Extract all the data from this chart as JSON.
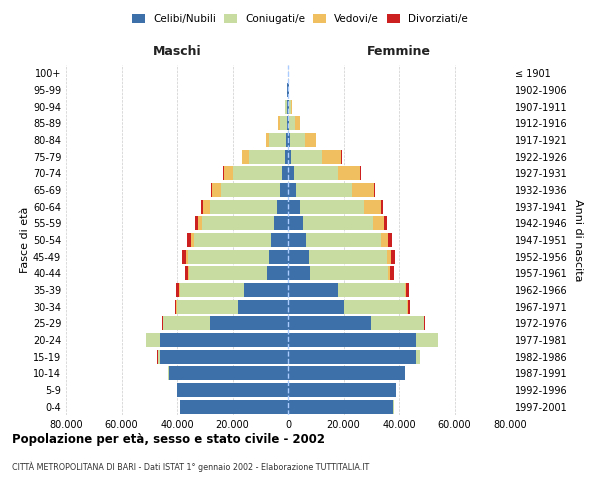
{
  "age_groups": [
    "0-4",
    "5-9",
    "10-14",
    "15-19",
    "20-24",
    "25-29",
    "30-34",
    "35-39",
    "40-44",
    "45-49",
    "50-54",
    "55-59",
    "60-64",
    "65-69",
    "70-74",
    "75-79",
    "80-84",
    "85-89",
    "90-94",
    "95-99",
    "100+"
  ],
  "birth_years": [
    "1997-2001",
    "1992-1996",
    "1987-1991",
    "1982-1986",
    "1977-1981",
    "1972-1976",
    "1967-1971",
    "1962-1966",
    "1957-1961",
    "1952-1956",
    "1947-1951",
    "1942-1946",
    "1937-1941",
    "1932-1936",
    "1927-1931",
    "1922-1926",
    "1917-1921",
    "1912-1916",
    "1907-1911",
    "1902-1906",
    "≤ 1901"
  ],
  "males": {
    "celibi": [
      39000,
      40000,
      43000,
      46000,
      46000,
      28000,
      18000,
      16000,
      7500,
      7000,
      6000,
      5000,
      4000,
      3000,
      2000,
      1200,
      700,
      500,
      400,
      200,
      100
    ],
    "coniugati": [
      20,
      50,
      200,
      1000,
      5000,
      17000,
      22000,
      23000,
      28000,
      29000,
      28000,
      26000,
      24000,
      21000,
      18000,
      13000,
      6000,
      2500,
      600,
      100,
      50
    ],
    "vedovi": [
      2,
      5,
      10,
      20,
      50,
      100,
      200,
      300,
      500,
      700,
      1000,
      1500,
      2500,
      3500,
      3200,
      2200,
      1200,
      600,
      200,
      50,
      20
    ],
    "divorziati": [
      2,
      5,
      10,
      30,
      100,
      300,
      700,
      900,
      1200,
      1500,
      1400,
      1000,
      700,
      400,
      200,
      100,
      50,
      30,
      20,
      10,
      5
    ]
  },
  "females": {
    "nubili": [
      38000,
      39000,
      42000,
      46000,
      46000,
      30000,
      20000,
      18000,
      8000,
      7500,
      6500,
      5500,
      4500,
      3000,
      2000,
      1200,
      700,
      500,
      400,
      200,
      100
    ],
    "coniugate": [
      30,
      80,
      300,
      1500,
      8000,
      19000,
      23000,
      24000,
      28000,
      28000,
      27000,
      25000,
      23000,
      20000,
      16000,
      11000,
      5500,
      2000,
      600,
      100,
      50
    ],
    "vedove": [
      2,
      5,
      10,
      20,
      50,
      100,
      200,
      400,
      800,
      1500,
      2500,
      4000,
      6000,
      8000,
      8000,
      7000,
      4000,
      1800,
      500,
      100,
      20
    ],
    "divorziate": [
      2,
      5,
      10,
      40,
      150,
      400,
      800,
      1100,
      1400,
      1700,
      1600,
      1200,
      800,
      500,
      300,
      120,
      60,
      40,
      20,
      10,
      5
    ]
  },
  "color_celibi": "#3d6fa8",
  "color_coniugati": "#c8dba0",
  "color_vedovi": "#f0c060",
  "color_divorziati": "#cc2020",
  "xlim": 80000,
  "title": "Popolazione per età, sesso e stato civile - 2002",
  "subtitle": "CITTÀ METROPOLITANA DI BARI - Dati ISTAT 1° gennaio 2002 - Elaborazione TUTTITALIA.IT",
  "xlabel_left": "Maschi",
  "xlabel_right": "Femmine",
  "ylabel_left": "Fasce di età",
  "ylabel_right": "Anni di nascita",
  "background_color": "#ffffff",
  "grid_color": "#cccccc"
}
